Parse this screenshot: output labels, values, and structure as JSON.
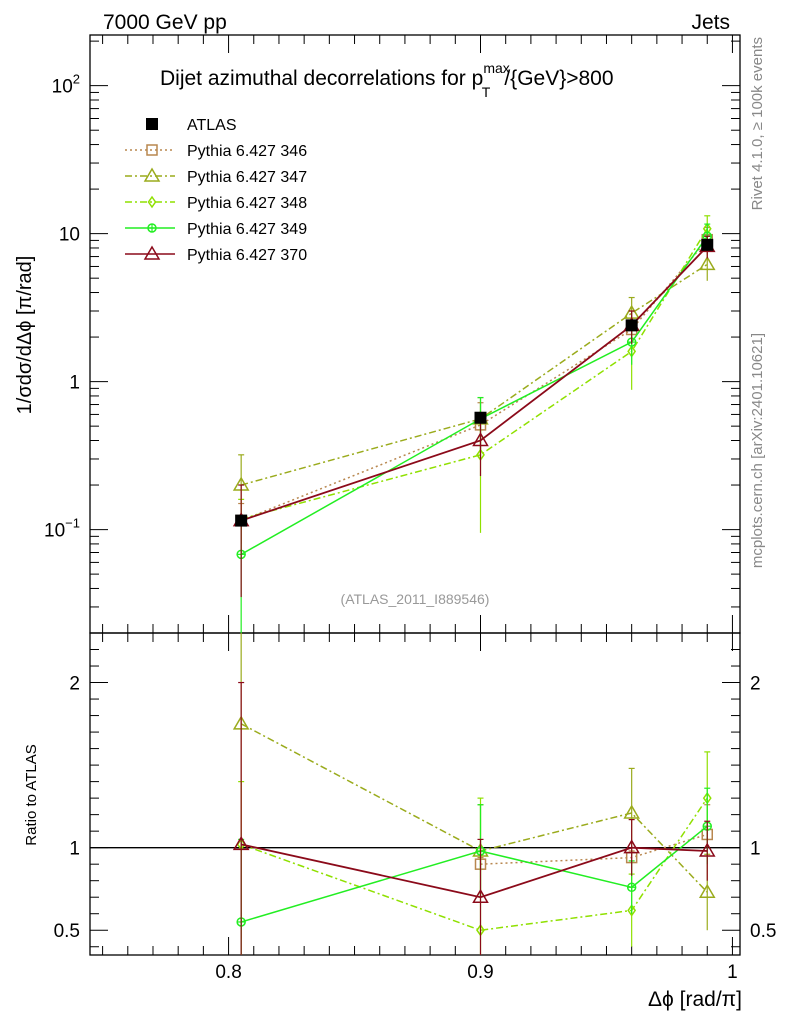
{
  "header": {
    "left": "7000 GeV pp",
    "right": "Jets"
  },
  "title": {
    "main": "Dijet azimuthal decorrelations for p",
    "sup": "max",
    "sub": "T",
    "tail": "/{GeV}>800"
  },
  "side_labels": {
    "rivet": "Rivet 4.1.0, ≥ 100k events",
    "mcplots": "mcplots.cern.ch [arXiv:2401.10621]"
  },
  "analysis_id": "(ATLAS_2011_I889546)",
  "colors": {
    "ATLAS": "#000000",
    "P346": "#b8874f",
    "P347": "#9aab1c",
    "P348": "#8fe000",
    "P349": "#22ee22",
    "P370": "#8b0a1a"
  },
  "chart_data": [
    {
      "type": "line",
      "panel": "main",
      "title": "Dijet azimuthal decorrelations for p_T^max/{GeV}>800",
      "ylabel": "1/σdσ/dΔϕ [π/rad]",
      "yscale": "log",
      "ylim": [
        0.02,
        220
      ],
      "xlim": [
        0.745,
        1.003
      ],
      "x": [
        0.805,
        0.9,
        0.96,
        0.99
      ],
      "x_ticks": [
        0.8,
        0.9,
        1.0
      ],
      "y_ticks": [
        {
          "value": 0.1,
          "base": "10",
          "exp": "−1"
        },
        {
          "value": 1,
          "label": "1"
        },
        {
          "value": 10,
          "label": "10"
        },
        {
          "value": 100,
          "base": "10",
          "exp": "2"
        }
      ],
      "legend_position": "top-left",
      "series": [
        {
          "key": "ATLAS",
          "name": "ATLAS",
          "marker": "square-filled",
          "style": "none",
          "values": [
            0.115,
            0.57,
            2.4,
            8.4
          ],
          "err_lo": [
            0.115,
            0.57,
            2.4,
            8.4
          ],
          "err_hi": [
            0.115,
            0.57,
            2.4,
            8.4
          ]
        },
        {
          "key": "P346",
          "name": "Pythia 6.427 346",
          "marker": "square-open",
          "style": "dotted",
          "values": [
            0.115,
            0.51,
            2.25,
            9.1
          ],
          "err_lo": [
            0.08,
            0.3,
            1.5,
            7.2
          ],
          "err_hi": [
            0.15,
            0.72,
            3.0,
            11.0
          ]
        },
        {
          "key": "P347",
          "name": "Pythia 6.427 347",
          "marker": "triangle-open",
          "style": "dashdot",
          "values": [
            0.2,
            0.56,
            2.9,
            6.2
          ],
          "err_lo": [
            0.12,
            0.35,
            2.1,
            4.8
          ],
          "err_hi": [
            0.32,
            0.78,
            3.7,
            7.6
          ]
        },
        {
          "key": "P348",
          "name": "Pythia 6.427 348",
          "marker": "diamond-open",
          "style": "dashdot",
          "values": [
            0.118,
            0.32,
            1.6,
            10.8
          ],
          "err_lo": [
            0.07,
            0.095,
            0.88,
            8.4
          ],
          "err_hi": [
            0.16,
            0.55,
            2.3,
            13.2
          ]
        },
        {
          "key": "P349",
          "name": "Pythia 6.427 349",
          "marker": "circle-cross",
          "style": "solid",
          "values": [
            0.068,
            0.56,
            1.85,
            9.6
          ],
          "err_lo": [
            0.01,
            0.34,
            1.3,
            7.6
          ],
          "err_hi": [
            0.12,
            0.78,
            2.4,
            11.6
          ]
        },
        {
          "key": "P370",
          "name": "Pythia 6.427 370",
          "marker": "triangle-open",
          "style": "solid",
          "values": [
            0.115,
            0.4,
            2.4,
            8.2
          ],
          "err_lo": [
            0.035,
            0.23,
            1.8,
            6.8
          ],
          "err_hi": [
            0.2,
            0.58,
            3.0,
            9.6
          ]
        }
      ]
    },
    {
      "type": "line",
      "panel": "ratio",
      "ylabel": "Ratio to ATLAS",
      "ylim": [
        0.35,
        2.3
      ],
      "xlim": [
        0.745,
        1.003
      ],
      "xlabel": "Δϕ [rad/π]",
      "x": [
        0.805,
        0.9,
        0.96,
        0.99
      ],
      "y_ticks": [
        0.5,
        1,
        2
      ],
      "x_ticks": [
        0.8,
        0.9,
        1.0
      ],
      "series": [
        {
          "key": "P346",
          "name": "Pythia 6.427 346",
          "values": [
            null,
            0.9,
            0.94,
            1.08
          ],
          "err_lo": [
            null,
            0.86,
            0.9,
            0.9
          ],
          "err_hi": [
            null,
            0.94,
            0.98,
            1.26
          ]
        },
        {
          "key": "P347",
          "name": "Pythia 6.427 347",
          "values": [
            1.75,
            0.98,
            1.21,
            0.73
          ],
          "err_lo": [
            0.45,
            0.7,
            0.95,
            0.5
          ],
          "err_hi": [
            3.0,
            1.26,
            1.48,
            0.96
          ]
        },
        {
          "key": "P348",
          "name": "Pythia 6.427 348",
          "values": [
            1.02,
            0.5,
            0.62,
            1.3
          ],
          "err_lo": [
            0.3,
            0.1,
            0.4,
            1.0
          ],
          "err_hi": [
            1.4,
            1.3,
            0.84,
            1.58
          ]
        },
        {
          "key": "P349",
          "name": "Pythia 6.427 349",
          "values": [
            0.55,
            0.98,
            0.76,
            1.13
          ],
          "err_lo": [
            0.05,
            0.7,
            0.6,
            0.9
          ],
          "err_hi": [
            1.05,
            1.26,
            0.92,
            1.36
          ]
        },
        {
          "key": "P370",
          "name": "Pythia 6.427 370",
          "values": [
            1.02,
            0.7,
            1.0,
            0.98
          ],
          "err_lo": [
            0.3,
            0.35,
            0.83,
            0.8
          ],
          "err_hi": [
            2.0,
            1.05,
            1.17,
            1.16
          ]
        }
      ]
    }
  ]
}
